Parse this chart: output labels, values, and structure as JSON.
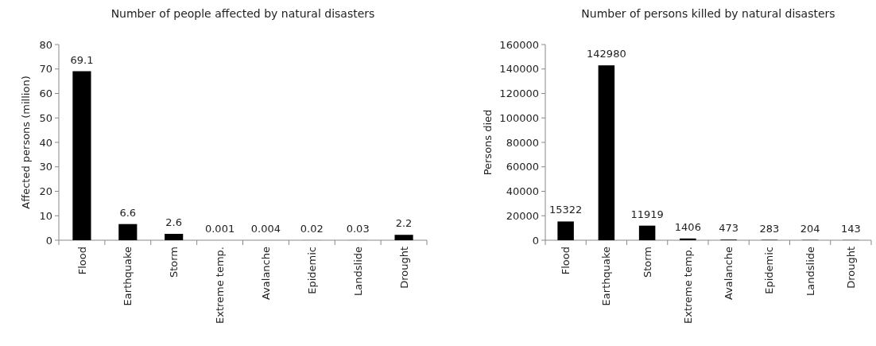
{
  "chart_data": [
    {
      "type": "bar",
      "title": "Number of people affected by natural disasters",
      "ylabel": "Affected persons (million)",
      "categories": [
        "Flood",
        "Earthquake",
        "Storm",
        "Extreme temp.",
        "Avalanche",
        "Epidemic",
        "Landslide",
        "Drought"
      ],
      "values": [
        69.1,
        6.6,
        2.6,
        0.001,
        0.004,
        0.02,
        0.03,
        2.2
      ],
      "color": "#000000",
      "ylim": [
        0,
        80
      ],
      "yticks": [
        0,
        10,
        20,
        30,
        40,
        50,
        60,
        70,
        80
      ],
      "data_labels": true
    },
    {
      "type": "bar",
      "title": "Number of persons killed by natural disasters",
      "ylabel": "Persons died",
      "categories": [
        "Flood",
        "Earthquake",
        "Storm",
        "Extreme temp.",
        "Avalanche",
        "Epidemic",
        "Landslide",
        "Drought"
      ],
      "values": [
        15322,
        142980,
        11919,
        1406,
        473,
        283,
        204,
        143
      ],
      "color": "#000000",
      "ylim": [
        0,
        160000
      ],
      "yticks": [
        0,
        20000,
        40000,
        60000,
        80000,
        100000,
        120000,
        140000,
        160000
      ],
      "data_labels": true
    }
  ]
}
